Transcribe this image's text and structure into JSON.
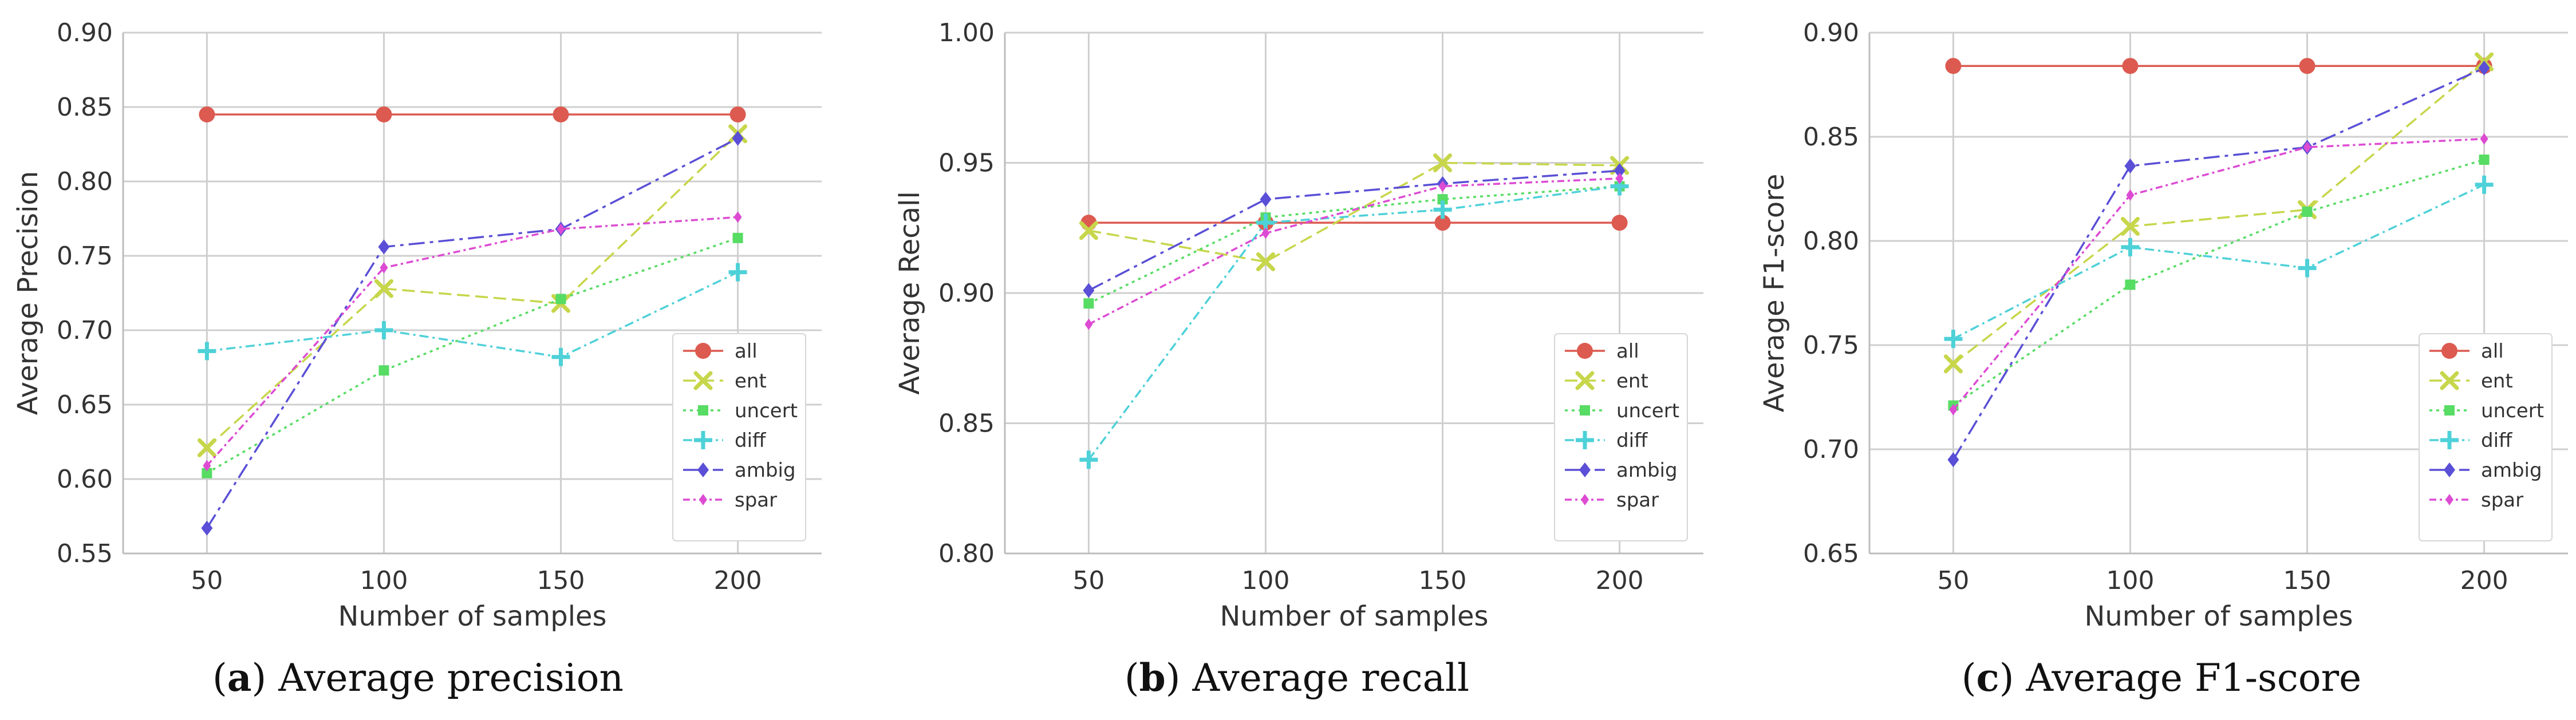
{
  "chart_data": [
    {
      "type": "line",
      "caption_letter": "a",
      "caption_text": "Average precision",
      "xlabel": "Number of samples",
      "ylabel": "Average Precision",
      "x": [
        50,
        100,
        150,
        200
      ],
      "xticks": [
        "50",
        "100",
        "150",
        "200"
      ],
      "ylim": [
        0.55,
        0.9
      ],
      "yticks": [
        "0.55",
        "0.60",
        "0.65",
        "0.70",
        "0.75",
        "0.80",
        "0.85",
        "0.90"
      ],
      "legend_position": "bottom-right",
      "series": [
        {
          "name": "all",
          "color": "#dc5a50",
          "marker": "circle",
          "dash": "solid",
          "values": [
            0.845,
            0.845,
            0.845,
            0.845
          ]
        },
        {
          "name": "ent",
          "color": "#c7d64a",
          "marker": "x",
          "dash": "dashed",
          "values": [
            0.621,
            0.728,
            0.718,
            0.832
          ]
        },
        {
          "name": "uncert",
          "color": "#57dc64",
          "marker": "square",
          "dash": "dotted",
          "values": [
            0.604,
            0.673,
            0.721,
            0.762
          ]
        },
        {
          "name": "diff",
          "color": "#4ed1d8",
          "marker": "plus",
          "dash": "dashdot",
          "values": [
            0.686,
            0.7,
            0.682,
            0.739
          ]
        },
        {
          "name": "ambig",
          "color": "#5a4fd6",
          "marker": "diamond",
          "dash": "longdash",
          "values": [
            0.567,
            0.756,
            0.768,
            0.829
          ]
        },
        {
          "name": "spar",
          "color": "#dd4bd3",
          "marker": "pdiamond",
          "dash": "dashdot2",
          "values": [
            0.609,
            0.742,
            0.768,
            0.776
          ]
        }
      ]
    },
    {
      "type": "line",
      "caption_letter": "b",
      "caption_text": "Average recall",
      "xlabel": "Number of samples",
      "ylabel": "Average Recall",
      "x": [
        50,
        100,
        150,
        200
      ],
      "xticks": [
        "50",
        "100",
        "150",
        "200"
      ],
      "ylim": [
        0.8,
        1.0
      ],
      "yticks": [
        "0.80",
        "0.85",
        "0.90",
        "0.95",
        "1.00"
      ],
      "legend_position": "bottom-right",
      "series": [
        {
          "name": "all",
          "color": "#dc5a50",
          "marker": "circle",
          "dash": "solid",
          "values": [
            0.927,
            0.927,
            0.927,
            0.927
          ]
        },
        {
          "name": "ent",
          "color": "#c7d64a",
          "marker": "x",
          "dash": "dashed",
          "values": [
            0.924,
            0.912,
            0.95,
            0.949
          ]
        },
        {
          "name": "uncert",
          "color": "#57dc64",
          "marker": "square",
          "dash": "dotted",
          "values": [
            0.896,
            0.929,
            0.936,
            0.941
          ]
        },
        {
          "name": "diff",
          "color": "#4ed1d8",
          "marker": "plus",
          "dash": "dashdot",
          "values": [
            0.836,
            0.927,
            0.932,
            0.941
          ]
        },
        {
          "name": "ambig",
          "color": "#5a4fd6",
          "marker": "diamond",
          "dash": "longdash",
          "values": [
            0.901,
            0.936,
            0.942,
            0.947
          ]
        },
        {
          "name": "spar",
          "color": "#dd4bd3",
          "marker": "pdiamond",
          "dash": "dashdot2",
          "values": [
            0.888,
            0.923,
            0.941,
            0.944
          ]
        }
      ]
    },
    {
      "type": "line",
      "caption_letter": "c",
      "caption_text": "Average F1-score",
      "xlabel": "Number of samples",
      "ylabel": "Average F1-score",
      "x": [
        50,
        100,
        150,
        200
      ],
      "xticks": [
        "50",
        "100",
        "150",
        "200"
      ],
      "ylim": [
        0.65,
        0.9
      ],
      "yticks": [
        "0.65",
        "0.70",
        "0.75",
        "0.80",
        "0.85",
        "0.90"
      ],
      "legend_position": "bottom-right",
      "series": [
        {
          "name": "all",
          "color": "#dc5a50",
          "marker": "circle",
          "dash": "solid",
          "values": [
            0.884,
            0.884,
            0.884,
            0.884
          ]
        },
        {
          "name": "ent",
          "color": "#c7d64a",
          "marker": "x",
          "dash": "dashed",
          "values": [
            0.741,
            0.807,
            0.815,
            0.886
          ]
        },
        {
          "name": "uncert",
          "color": "#57dc64",
          "marker": "square",
          "dash": "dotted",
          "values": [
            0.721,
            0.779,
            0.814,
            0.839
          ]
        },
        {
          "name": "diff",
          "color": "#4ed1d8",
          "marker": "plus",
          "dash": "dashdot",
          "values": [
            0.753,
            0.797,
            0.787,
            0.827
          ]
        },
        {
          "name": "ambig",
          "color": "#5a4fd6",
          "marker": "diamond",
          "dash": "longdash",
          "values": [
            0.695,
            0.836,
            0.845,
            0.883
          ]
        },
        {
          "name": "spar",
          "color": "#dd4bd3",
          "marker": "pdiamond",
          "dash": "dashdot2",
          "values": [
            0.719,
            0.822,
            0.845,
            0.849
          ]
        }
      ]
    }
  ]
}
